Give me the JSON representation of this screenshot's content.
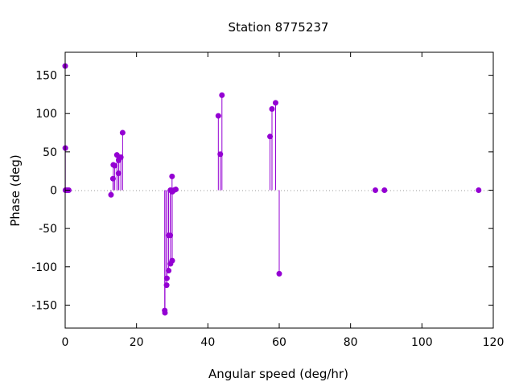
{
  "chart_data": {
    "type": "scatter",
    "title": "Station 8775237",
    "xlabel": "Angular speed (deg/hr)",
    "ylabel": "Phase (deg)",
    "xlim": [
      0,
      120
    ],
    "ylim": [
      -180,
      180
    ],
    "xticks": [
      0,
      20,
      40,
      60,
      80,
      100,
      120
    ],
    "yticks": [
      -150,
      -100,
      -50,
      0,
      50,
      100,
      150
    ],
    "grid": false,
    "zero_line": true,
    "legend": "none",
    "color": "#9400d3",
    "style": "impulses with points",
    "series": [
      {
        "points": [
          [
            0.0,
            162
          ],
          [
            0.04,
            55
          ],
          [
            0.08,
            0
          ],
          [
            0.5,
            0
          ],
          [
            1.0,
            0
          ],
          [
            12.85,
            -6
          ],
          [
            13.4,
            15
          ],
          [
            13.5,
            33
          ],
          [
            13.9,
            32
          ],
          [
            14.5,
            46
          ],
          [
            14.96,
            22
          ],
          [
            15.0,
            39
          ],
          [
            15.04,
            40
          ],
          [
            15.6,
            43
          ],
          [
            16.1,
            75
          ],
          [
            27.9,
            -157
          ],
          [
            27.97,
            -160
          ],
          [
            28.44,
            -124
          ],
          [
            28.51,
            -115
          ],
          [
            28.98,
            -59
          ],
          [
            29.0,
            -105
          ],
          [
            29.46,
            -59
          ],
          [
            29.5,
            0
          ],
          [
            29.53,
            -96
          ],
          [
            29.96,
            18
          ],
          [
            30.0,
            -92
          ],
          [
            30.04,
            -2
          ],
          [
            30.5,
            0
          ],
          [
            31.0,
            1
          ],
          [
            42.93,
            97
          ],
          [
            43.48,
            47
          ],
          [
            43.94,
            124
          ],
          [
            57.42,
            70
          ],
          [
            57.97,
            106
          ],
          [
            58.98,
            114
          ],
          [
            60.0,
            -109
          ],
          [
            86.95,
            0
          ],
          [
            89.5,
            0
          ],
          [
            115.9,
            0
          ]
        ]
      }
    ]
  }
}
